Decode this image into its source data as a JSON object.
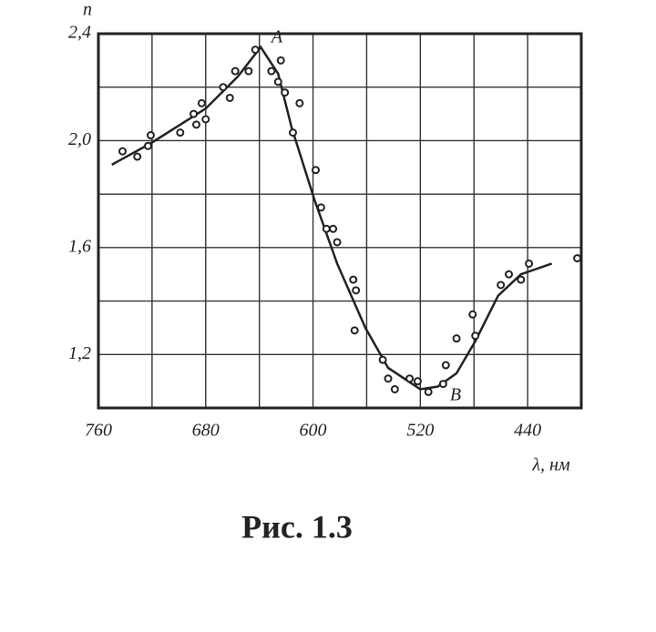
{
  "chart_data": {
    "type": "line",
    "y_label": "n",
    "x_label": "λ, нм",
    "xlim": [
      760,
      400
    ],
    "ylim": [
      1.0,
      2.4
    ],
    "xticks": [
      760,
      680,
      600,
      520,
      440
    ],
    "xminor": [
      720,
      640,
      560,
      480,
      400
    ],
    "yticks": [
      {
        "value": 2.4,
        "label": "2,4"
      },
      {
        "value": 2.0,
        "label": "2,0"
      },
      {
        "value": 1.6,
        "label": "1,6"
      },
      {
        "value": 1.2,
        "label": "1,2"
      }
    ],
    "yminor": [
      2.2,
      1.8,
      1.4,
      1.0
    ],
    "grid": true,
    "annotations": [
      "A",
      "B"
    ],
    "series": [
      {
        "type": "line",
        "color": "#222",
        "x": [
          750,
          721,
          680,
          656,
          639,
          626,
          616,
          599,
          582,
          561,
          544,
          520,
          507,
          493,
          479,
          462,
          445,
          422
        ],
        "values": [
          1.91,
          1.99,
          2.12,
          2.24,
          2.35,
          2.25,
          2.05,
          1.78,
          1.54,
          1.3,
          1.15,
          1.07,
          1.08,
          1.13,
          1.25,
          1.42,
          1.5,
          1.54
        ]
      },
      {
        "type": "scatter",
        "color": "#222",
        "x": [
          742,
          731,
          723,
          721,
          699,
          689,
          687,
          683,
          680,
          667,
          662,
          658,
          648,
          643,
          631,
          626,
          624,
          621,
          615,
          610,
          598,
          594,
          590,
          585,
          582,
          570,
          568,
          569,
          548,
          544,
          539,
          528,
          522,
          514,
          503,
          501,
          493,
          481,
          479,
          460,
          454,
          445,
          439,
          403
        ],
        "values": [
          1.96,
          1.94,
          1.98,
          2.02,
          2.03,
          2.1,
          2.06,
          2.14,
          2.08,
          2.2,
          2.16,
          2.26,
          2.26,
          2.34,
          2.26,
          2.22,
          2.3,
          2.18,
          2.03,
          2.14,
          1.89,
          1.75,
          1.67,
          1.67,
          1.62,
          1.48,
          1.44,
          1.29,
          1.18,
          1.11,
          1.07,
          1.11,
          1.1,
          1.06,
          1.09,
          1.16,
          1.26,
          1.35,
          1.27,
          1.46,
          1.5,
          1.48,
          1.54,
          1.56
        ]
      }
    ]
  },
  "caption": "Рис. 1.3"
}
